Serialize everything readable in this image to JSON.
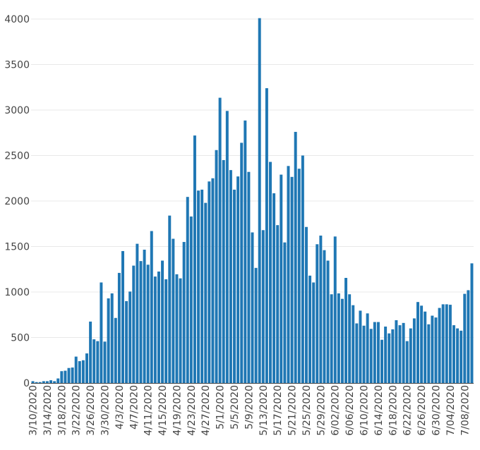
{
  "chart_data": {
    "type": "bar",
    "title": "",
    "xlabel": "",
    "ylabel": "",
    "ylim": [
      0,
      4000
    ],
    "yticks": [
      0,
      500,
      1000,
      1500,
      2000,
      2500,
      3000,
      3500,
      4000
    ],
    "ytick_labels": [
      "0",
      "500",
      "1000",
      "1500",
      "2000",
      "2500",
      "3000",
      "3500",
      "4000"
    ],
    "grid": true,
    "bar_color": "#1f77b4",
    "start_date": "2020-03-10",
    "xtick_every_days": 4,
    "xtick_labels": [
      "3/10/2020",
      "3/14/2020",
      "3/18/2020",
      "3/22/2020",
      "3/26/2020",
      "3/30/2020",
      "4/3/2020",
      "4/7/2020",
      "4/11/2020",
      "4/15/2020",
      "4/19/2020",
      "4/23/2020",
      "4/27/2020",
      "5/1/2020",
      "5/5/2020",
      "5/9/2020",
      "5/13/2020",
      "5/17/2020",
      "5/21/2020",
      "5/25/2020",
      "5/29/2020",
      "6/02/2020",
      "6/06/2020",
      "6/10/2020",
      "6/14/2020",
      "6/18/2020",
      "6/22/2020",
      "6/26/2020",
      "6/30/2020",
      "7/04/2020",
      "7/08/2020"
    ],
    "values": [
      20,
      10,
      10,
      20,
      20,
      30,
      20,
      50,
      130,
      135,
      165,
      170,
      290,
      240,
      250,
      325,
      675,
      480,
      460,
      1105,
      455,
      930,
      985,
      715,
      1210,
      1450,
      900,
      1005,
      1290,
      1530,
      1340,
      1465,
      1300,
      1670,
      1170,
      1225,
      1345,
      1140,
      1840,
      1585,
      1195,
      1150,
      1550,
      2045,
      1830,
      2720,
      2115,
      2125,
      1980,
      2215,
      2250,
      2560,
      3135,
      2450,
      2990,
      2340,
      2125,
      2270,
      2640,
      2885,
      2320,
      1655,
      1265,
      4010,
      1680,
      3240,
      2430,
      2085,
      1735,
      2290,
      1545,
      2385,
      2265,
      2760,
      2355,
      2500,
      1715,
      1180,
      1105,
      1525,
      1620,
      1460,
      1345,
      975,
      1610,
      985,
      925,
      1155,
      975,
      855,
      655,
      795,
      630,
      765,
      595,
      670,
      670,
      475,
      620,
      545,
      590,
      690,
      635,
      660,
      460,
      600,
      710,
      890,
      850,
      785,
      645,
      740,
      720,
      825,
      865,
      865,
      860,
      635,
      600,
      575,
      980,
      1020,
      1315
    ]
  }
}
